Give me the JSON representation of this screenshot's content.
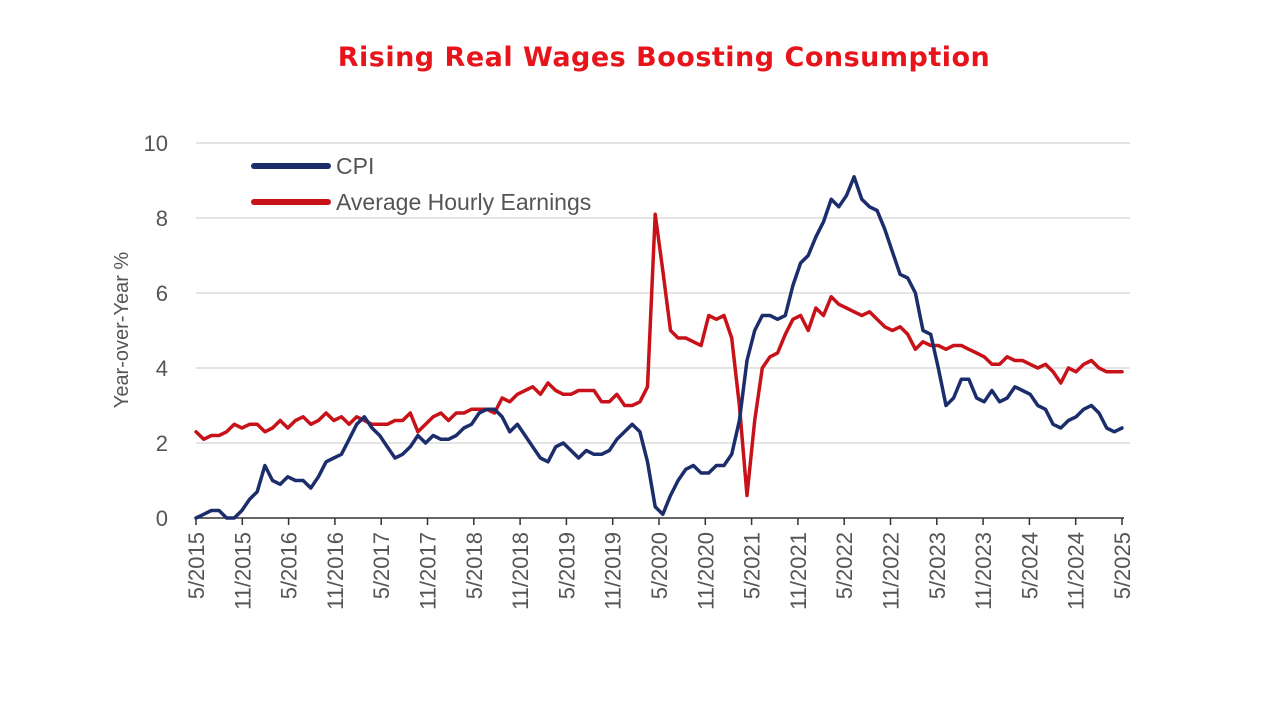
{
  "chart_data": {
    "type": "line",
    "title": "Rising Real Wages Boosting Consumption",
    "xlabel": "",
    "ylabel": "Year-over-Year %",
    "ylim": [
      0,
      10
    ],
    "yticks": [
      0,
      2,
      4,
      6,
      8,
      10
    ],
    "xticks": [
      "5/2015",
      "11/2015",
      "5/2016",
      "11/2016",
      "5/2017",
      "11/2017",
      "5/2018",
      "11/2018",
      "5/2019",
      "11/2019",
      "5/2020",
      "11/2020",
      "5/2021",
      "11/2021",
      "5/2022",
      "11/2022",
      "5/2023",
      "11/2023",
      "5/2024",
      "11/2024",
      "5/2025"
    ],
    "grid": "horizontal",
    "legend_position": "top-left",
    "colors": {
      "cpi": "#1b2d6b",
      "ahe": "#c8121a",
      "title": "#e8141c"
    },
    "series": [
      {
        "name": "CPI",
        "values": [
          0.0,
          0.1,
          0.2,
          0.2,
          0.0,
          0.0,
          0.2,
          0.5,
          0.7,
          1.4,
          1.0,
          0.9,
          1.1,
          1.0,
          1.0,
          0.8,
          1.1,
          1.5,
          1.6,
          1.7,
          2.1,
          2.5,
          2.7,
          2.4,
          2.2,
          1.9,
          1.6,
          1.7,
          1.9,
          2.2,
          2.0,
          2.2,
          2.1,
          2.1,
          2.2,
          2.4,
          2.5,
          2.8,
          2.9,
          2.9,
          2.7,
          2.3,
          2.5,
          2.2,
          1.9,
          1.6,
          1.5,
          1.9,
          2.0,
          1.8,
          1.6,
          1.8,
          1.7,
          1.7,
          1.8,
          2.1,
          2.3,
          2.5,
          2.3,
          1.5,
          0.3,
          0.1,
          0.6,
          1.0,
          1.3,
          1.4,
          1.2,
          1.2,
          1.4,
          1.4,
          1.7,
          2.6,
          4.2,
          5.0,
          5.4,
          5.4,
          5.3,
          5.4,
          6.2,
          6.8,
          7.0,
          7.5,
          7.9,
          8.5,
          8.3,
          8.6,
          9.1,
          8.5,
          8.3,
          8.2,
          7.7,
          7.1,
          6.5,
          6.4,
          6.0,
          5.0,
          4.9,
          4.0,
          3.0,
          3.2,
          3.7,
          3.7,
          3.2,
          3.1,
          3.4,
          3.1,
          3.2,
          3.5,
          3.4,
          3.3,
          3.0,
          2.9,
          2.5,
          2.4,
          2.6,
          2.7,
          2.9,
          3.0,
          2.8,
          2.4,
          2.3,
          2.4
        ]
      },
      {
        "name": "Average Hourly Earnings",
        "values": [
          2.3,
          2.1,
          2.2,
          2.2,
          2.3,
          2.5,
          2.4,
          2.5,
          2.5,
          2.3,
          2.4,
          2.6,
          2.4,
          2.6,
          2.7,
          2.5,
          2.6,
          2.8,
          2.6,
          2.7,
          2.5,
          2.7,
          2.6,
          2.5,
          2.5,
          2.5,
          2.6,
          2.6,
          2.8,
          2.3,
          2.5,
          2.7,
          2.8,
          2.6,
          2.8,
          2.8,
          2.9,
          2.9,
          2.9,
          2.8,
          3.2,
          3.1,
          3.3,
          3.4,
          3.5,
          3.3,
          3.6,
          3.4,
          3.3,
          3.3,
          3.4,
          3.4,
          3.4,
          3.1,
          3.1,
          3.3,
          3.0,
          3.0,
          3.1,
          3.5,
          8.1,
          6.6,
          5.0,
          4.8,
          4.8,
          4.7,
          4.6,
          5.4,
          5.3,
          5.4,
          4.8,
          3.0,
          0.6,
          2.6,
          4.0,
          4.3,
          4.4,
          4.9,
          5.3,
          5.4,
          5.0,
          5.6,
          5.4,
          5.9,
          5.7,
          5.6,
          5.5,
          5.4,
          5.5,
          5.3,
          5.1,
          5.0,
          5.1,
          4.9,
          4.5,
          4.7,
          4.6,
          4.6,
          4.5,
          4.6,
          4.6,
          4.5,
          4.4,
          4.3,
          4.1,
          4.1,
          4.3,
          4.2,
          4.2,
          4.1,
          4.0,
          4.1,
          3.9,
          3.6,
          4.0,
          3.9,
          4.1,
          4.2,
          4.0,
          3.9,
          3.9,
          3.9
        ]
      }
    ]
  }
}
